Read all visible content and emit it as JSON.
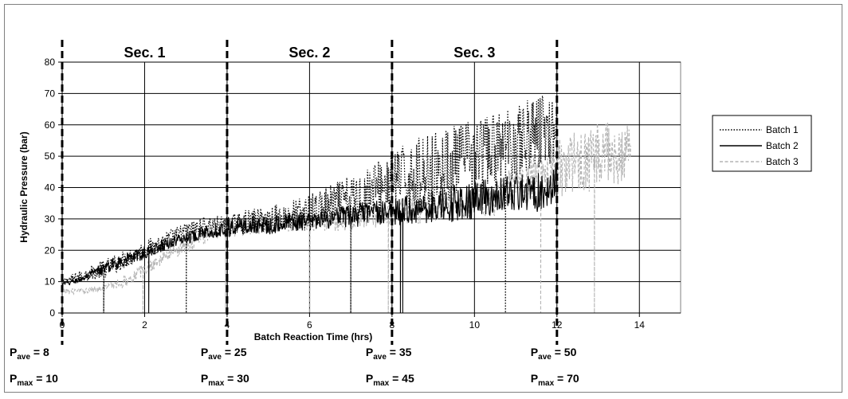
{
  "chart_data": {
    "type": "line",
    "xlabel": "Batch Reaction Time (hrs)",
    "ylabel": "Hydraulic Pressure (bar)",
    "xlim": [
      0,
      15
    ],
    "ylim": [
      0,
      80
    ],
    "xticks": [
      0,
      2,
      4,
      6,
      8,
      10,
      12,
      14
    ],
    "yticks": [
      0,
      10,
      20,
      30,
      40,
      50,
      60,
      70,
      80
    ],
    "grid": true,
    "legend_position": "right",
    "sections": [
      {
        "label": "Sec. 1",
        "start": 0,
        "end": 4,
        "p_ave": "8",
        "p_max": "10"
      },
      {
        "label": "Sec. 2",
        "start": 4,
        "end": 8,
        "p_ave": "25",
        "p_max": "30"
      },
      {
        "label": "Sec. 3",
        "start": 8,
        "end": 12,
        "p_ave": "35",
        "p_max": "45"
      },
      {
        "label": "",
        "start": 12,
        "end": 14,
        "p_ave": "50",
        "p_max": "70"
      }
    ],
    "stat_labels": {
      "p": "P",
      "ave": "ave",
      "max": "max",
      "eq": " = "
    },
    "section_boundaries": [
      0,
      4,
      8,
      12
    ],
    "series": [
      {
        "name": "Batch 1",
        "style": "dotted",
        "color": "#000000",
        "x": [
          0,
          0.5,
          1,
          1.5,
          2,
          2.5,
          3,
          3.5,
          4,
          4.5,
          5,
          5.5,
          6,
          6.5,
          7,
          7.5,
          8,
          8.5,
          9,
          9.5,
          10,
          10.5,
          11,
          11.5,
          12
        ],
        "y": [
          10,
          12,
          14,
          17,
          20,
          23,
          26,
          28,
          28,
          29,
          30,
          31,
          32,
          34,
          36,
          39,
          42,
          44,
          46,
          48,
          50,
          52,
          55,
          58,
          60
        ],
        "amp": [
          1,
          2,
          3,
          3,
          3,
          3,
          3,
          3,
          3,
          4,
          4,
          5,
          6,
          7,
          8,
          9,
          10,
          11,
          12,
          12,
          12,
          12,
          12,
          12,
          12
        ],
        "drops": [
          1.0,
          3.0,
          7.0,
          10.75
        ]
      },
      {
        "name": "Batch 2",
        "style": "solid",
        "color": "#000000",
        "x": [
          0,
          0.5,
          1,
          1.5,
          2,
          2.5,
          3,
          3.5,
          4,
          4.5,
          5,
          5.5,
          6,
          6.5,
          7,
          7.5,
          8,
          8.5,
          9,
          9.5,
          10,
          10.5,
          11,
          11.5,
          12
        ],
        "y": [
          9,
          11,
          14,
          17,
          19,
          22,
          24,
          26,
          27,
          28,
          28,
          29,
          29,
          30,
          31,
          32,
          32,
          33,
          34,
          35,
          36,
          37,
          38,
          39,
          41
        ],
        "amp": [
          1,
          1,
          2,
          2,
          2,
          2,
          2,
          2,
          3,
          3,
          3,
          3,
          3,
          3,
          4,
          4,
          4,
          5,
          5,
          6,
          6,
          6,
          6,
          7,
          7
        ],
        "drops": [
          2.1,
          4.0,
          8.2,
          8.25
        ]
      },
      {
        "name": "Batch 3",
        "style": "dashed",
        "color": "#b4b4b4",
        "x": [
          0,
          0.5,
          1,
          1.5,
          2,
          2.5,
          3,
          3.5,
          4,
          4.5,
          5,
          5.5,
          6,
          6.5,
          7,
          7.5,
          8,
          8.5,
          9,
          9.5,
          10,
          10.5,
          11,
          11.5,
          12,
          12.5,
          13,
          13.5,
          13.8
        ],
        "y": [
          7,
          7,
          8,
          10,
          14,
          18,
          22,
          25,
          27,
          28,
          28,
          29,
          29,
          30,
          30,
          31,
          32,
          33,
          34,
          35,
          36,
          37,
          40,
          43,
          46,
          48,
          50,
          52,
          52
        ],
        "amp": [
          1,
          1,
          1,
          2,
          2,
          2,
          3,
          3,
          3,
          3,
          3,
          3,
          3,
          4,
          4,
          4,
          4,
          5,
          5,
          5,
          6,
          6,
          7,
          8,
          9,
          10,
          11,
          12,
          12
        ],
        "drops": [
          1.95,
          3.95,
          6.0,
          7.9,
          11.6,
          12.9
        ]
      }
    ]
  }
}
